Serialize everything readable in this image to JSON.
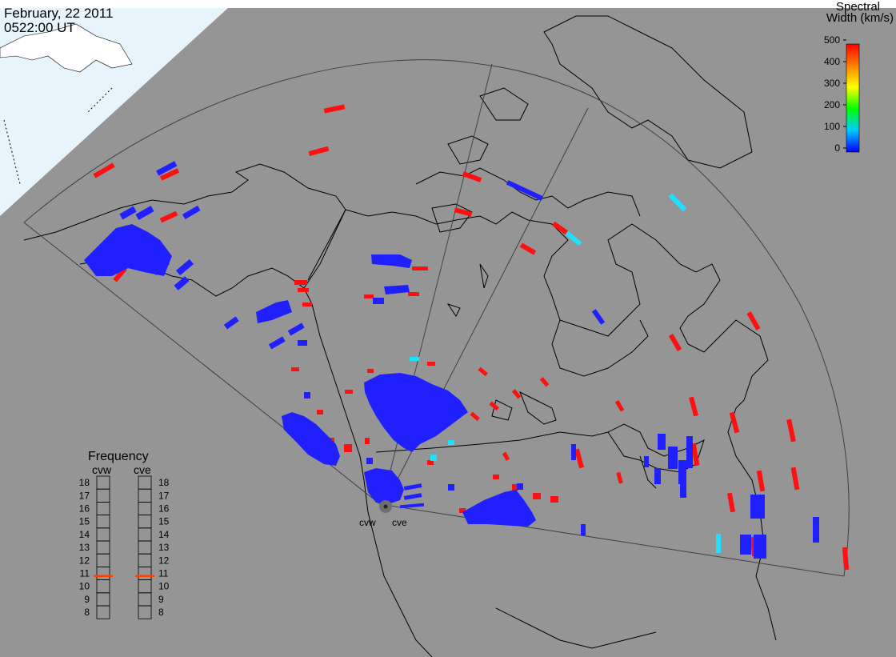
{
  "title": {
    "date": "February, 22 2011",
    "time": "0522:00 UT"
  },
  "colorbar": {
    "label_line1": "Spectral",
    "label_line2": "Width (km/s)",
    "ticks": [
      "500",
      "400",
      "300",
      "200",
      "100",
      "0"
    ],
    "range": [
      0,
      500
    ],
    "stops": [
      "#0000ff",
      "#00c8ff",
      "#00ff00",
      "#ffff00",
      "#ff8000",
      "#ff0000"
    ]
  },
  "radars": [
    {
      "name": "cvw",
      "label": "cvw"
    },
    {
      "name": "cve",
      "label": "cve"
    }
  ],
  "frequency_panel": {
    "title": "Frequency",
    "col_left": "cvw",
    "col_right": "cve",
    "ticks": [
      "18",
      "17",
      "16",
      "15",
      "14",
      "13",
      "12",
      "11",
      "10",
      "9",
      "8"
    ],
    "range": [
      8,
      18
    ],
    "cvw_value": 10.8,
    "cve_value": 10.8,
    "marker_color": "#ff4000"
  },
  "colors": {
    "land_ocean": "#959595",
    "sunlit": "#e8f4fb",
    "coast": "#000000",
    "fov": "#404040",
    "low_width": "#2020ff",
    "high_width": "#ff1010",
    "mid_width": "#20e0ff"
  }
}
